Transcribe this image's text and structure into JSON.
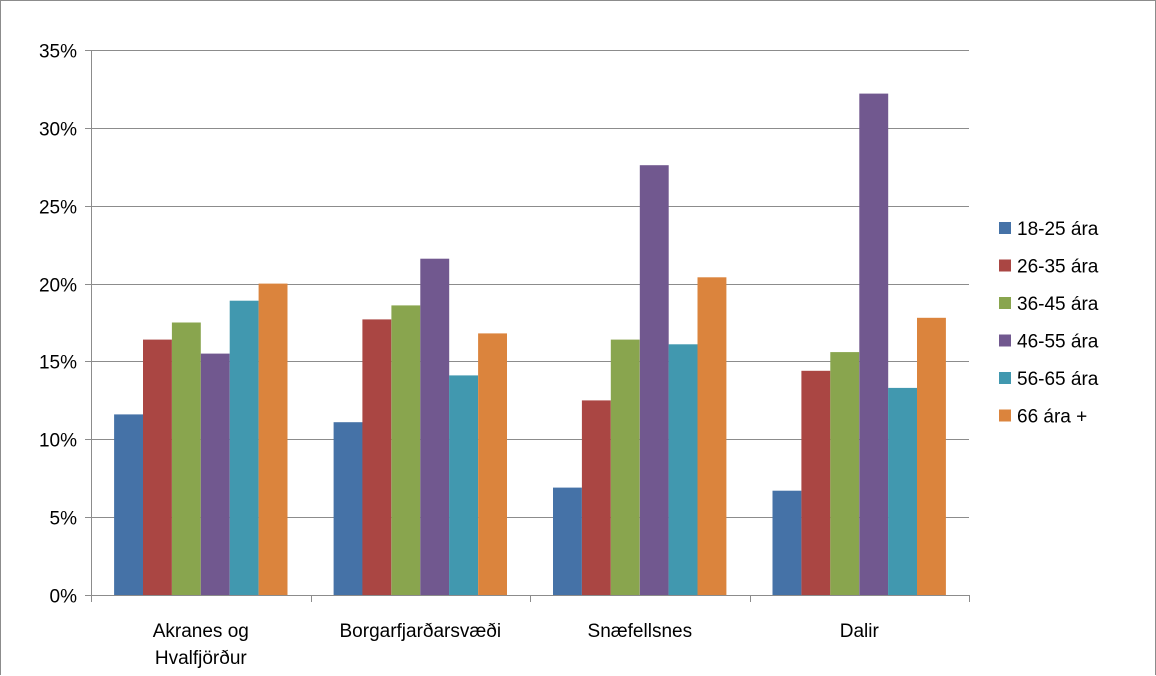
{
  "chart_data": {
    "type": "bar",
    "title": "",
    "xlabel": "",
    "ylabel": "",
    "ylim": [
      0,
      35
    ],
    "y_tick_step": 5,
    "y_tick_suffix": "%",
    "grid": true,
    "legend_position": "right",
    "categories": [
      [
        "Akranes og",
        "Hvalfjörður"
      ],
      [
        "Borgarfjarðarsvæði"
      ],
      [
        "Snæfellsnes"
      ],
      [
        "Dalir"
      ]
    ],
    "series": [
      {
        "name": "18-25 ára",
        "color": "#4572a7",
        "values": [
          11.6,
          11.1,
          6.9,
          6.7
        ]
      },
      {
        "name": "26-35 ára",
        "color": "#aa4643",
        "values": [
          16.4,
          17.7,
          12.5,
          14.4
        ]
      },
      {
        "name": "36-45 ára",
        "color": "#89a54e",
        "values": [
          17.5,
          18.6,
          16.4,
          15.6
        ]
      },
      {
        "name": "46-55 ára",
        "color": "#71588f",
        "values": [
          15.5,
          21.6,
          27.6,
          32.2
        ]
      },
      {
        "name": "56-65 ára",
        "color": "#4198af",
        "values": [
          18.9,
          14.1,
          16.1,
          13.3
        ]
      },
      {
        "name": "66 ára +",
        "color": "#db843d",
        "values": [
          20.0,
          16.8,
          20.4,
          17.8
        ]
      }
    ]
  }
}
